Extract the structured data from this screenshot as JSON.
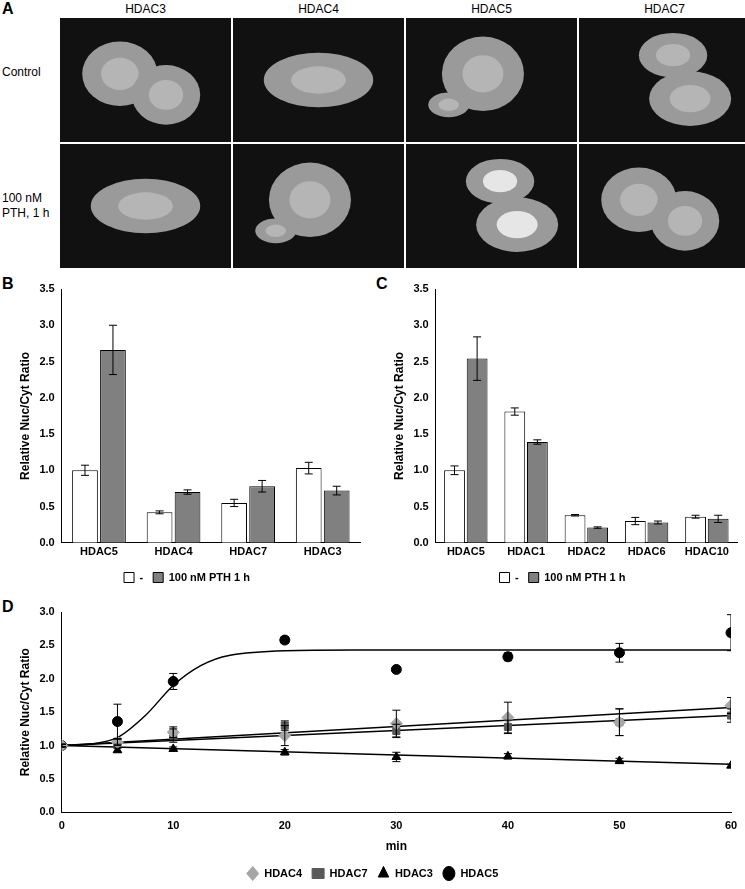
{
  "panel_a": {
    "panel_label": "A",
    "columns": [
      "HDAC3",
      "HDAC4",
      "HDAC5",
      "HDAC7"
    ],
    "rows": [
      "Control",
      "100 nM PTH, 1 h"
    ]
  },
  "chart_data": [
    {
      "panel_label": "B",
      "type": "bar",
      "categories": [
        "HDAC5",
        "HDAC4",
        "HDAC7",
        "HDAC3"
      ],
      "series": [
        {
          "name": "-",
          "color": "#ffffff",
          "values": [
            1.0,
            0.42,
            0.55,
            1.03
          ],
          "errors": [
            0.07,
            0.02,
            0.05,
            0.08
          ]
        },
        {
          "name": "100 nM PTH 1 h",
          "color": "#808080",
          "values": [
            2.66,
            0.7,
            0.78,
            0.72
          ],
          "errors": [
            0.34,
            0.03,
            0.08,
            0.06
          ]
        }
      ],
      "y_label": "Relative Nuc/Cyt Ratio",
      "ylim": [
        0,
        3.5
      ],
      "yticks": [
        {
          "value": 0,
          "label": "0.0"
        },
        {
          "value": 0.5,
          "label": "0.5"
        },
        {
          "value": 1,
          "label": "1.0"
        },
        {
          "value": 1.5,
          "label": "1.5"
        },
        {
          "value": 2,
          "label": "2.0"
        },
        {
          "value": 2.5,
          "label": "2.5"
        },
        {
          "value": 3,
          "label": "3.0"
        },
        {
          "value": 3.5,
          "label": "3.5"
        }
      ],
      "grid": false,
      "legend": "bottom"
    },
    {
      "panel_label": "C",
      "type": "bar",
      "categories": [
        "HDAC5",
        "HDAC1",
        "HDAC2",
        "HDAC6",
        "HDAC10"
      ],
      "series": [
        {
          "name": "-",
          "color": "#ffffff",
          "values": [
            1.0,
            1.81,
            0.38,
            0.3,
            0.36
          ],
          "errors": [
            0.06,
            0.05,
            0.01,
            0.05,
            0.02
          ]
        },
        {
          "name": "100 nM PTH 1 h",
          "color": "#808080",
          "values": [
            2.54,
            1.39,
            0.21,
            0.28,
            0.33
          ],
          "errors": [
            0.3,
            0.03,
            0.01,
            0.02,
            0.05
          ]
        }
      ],
      "y_label": "Relative Nuc/Cyt Ratio",
      "ylim": [
        0,
        3.5
      ],
      "yticks": [
        {
          "value": 0,
          "label": "0.0"
        },
        {
          "value": 0.5,
          "label": "0.5"
        },
        {
          "value": 1,
          "label": "1.0"
        },
        {
          "value": 1.5,
          "label": "1.5"
        },
        {
          "value": 2,
          "label": "2.0"
        },
        {
          "value": 2.5,
          "label": "2.5"
        },
        {
          "value": 3,
          "label": "3.0"
        },
        {
          "value": 3.5,
          "label": "3.5"
        }
      ],
      "grid": false,
      "legend": "bottom"
    },
    {
      "panel_label": "D",
      "type": "scatter",
      "x_label": "min",
      "y_label": "Relative Nuc/Cyt Ratio",
      "xlim": [
        0,
        60
      ],
      "xticks": [
        0,
        10,
        20,
        30,
        40,
        50,
        60
      ],
      "ylim": [
        0,
        3
      ],
      "yticks": [
        {
          "value": 0,
          "label": "0.0"
        },
        {
          "value": 0.5,
          "label": "0.5"
        },
        {
          "value": 1,
          "label": "1.0"
        },
        {
          "value": 1.5,
          "label": "1.5"
        },
        {
          "value": 2,
          "label": "2.0"
        },
        {
          "value": 2.5,
          "label": "2.5"
        },
        {
          "value": 3,
          "label": "3.0"
        }
      ],
      "grid": false,
      "legend": "bottom",
      "series": [
        {
          "name": "HDAC4",
          "color": "#a6a6a6",
          "marker": "diamond",
          "x": [
            0,
            5,
            10,
            20,
            30,
            40,
            50,
            60
          ],
          "values": [
            1.0,
            1.05,
            1.2,
            1.15,
            1.33,
            1.42,
            1.35,
            1.6
          ],
          "errors": [
            0.02,
            0.05,
            0.08,
            0.15,
            0.2,
            0.23,
            0.2,
            0.12
          ],
          "fit_x": [
            0,
            60
          ],
          "fit_values": [
            1.0,
            1.57
          ]
        },
        {
          "name": "HDAC7",
          "color": "#595959",
          "marker": "square",
          "x": [
            0,
            5,
            10,
            20,
            30,
            40,
            50,
            60
          ],
          "values": [
            1.0,
            1.06,
            1.15,
            1.3,
            1.22,
            1.28,
            1.35,
            1.45
          ],
          "errors": [
            0.02,
            0.04,
            0.1,
            0.07,
            0.1,
            0.1,
            0.2,
            0.1
          ],
          "fit_x": [
            0,
            60
          ],
          "fit_values": [
            1.0,
            1.45
          ]
        },
        {
          "name": "HDAC3",
          "color": "#000000",
          "marker": "triangle",
          "x": [
            0,
            5,
            10,
            20,
            30,
            40,
            50,
            60
          ],
          "values": [
            1.0,
            0.93,
            0.95,
            0.9,
            0.83,
            0.84,
            0.77,
            0.7
          ],
          "errors": [
            0.02,
            0.03,
            0.03,
            0.04,
            0.07,
            0.04,
            0.04,
            0.02
          ],
          "fit_x": [
            0,
            60
          ],
          "fit_values": [
            1.0,
            0.72
          ]
        },
        {
          "name": "HDAC5",
          "color": "#000000",
          "marker": "circle",
          "x": [
            0,
            5,
            10,
            20,
            30,
            40,
            50,
            60
          ],
          "values": [
            1.0,
            1.36,
            1.96,
            2.58,
            2.14,
            2.33,
            2.39,
            2.69
          ],
          "errors": [
            0.02,
            0.26,
            0.12,
            0.05,
            0.04,
            0.06,
            0.14,
            0.27
          ],
          "fit_x": [
            0,
            2.5,
            5,
            7.5,
            10,
            12.5,
            15,
            20,
            30,
            60
          ],
          "fit_values": [
            1.0,
            1.02,
            1.12,
            1.45,
            1.9,
            2.2,
            2.35,
            2.42,
            2.43,
            2.43
          ]
        }
      ]
    }
  ]
}
